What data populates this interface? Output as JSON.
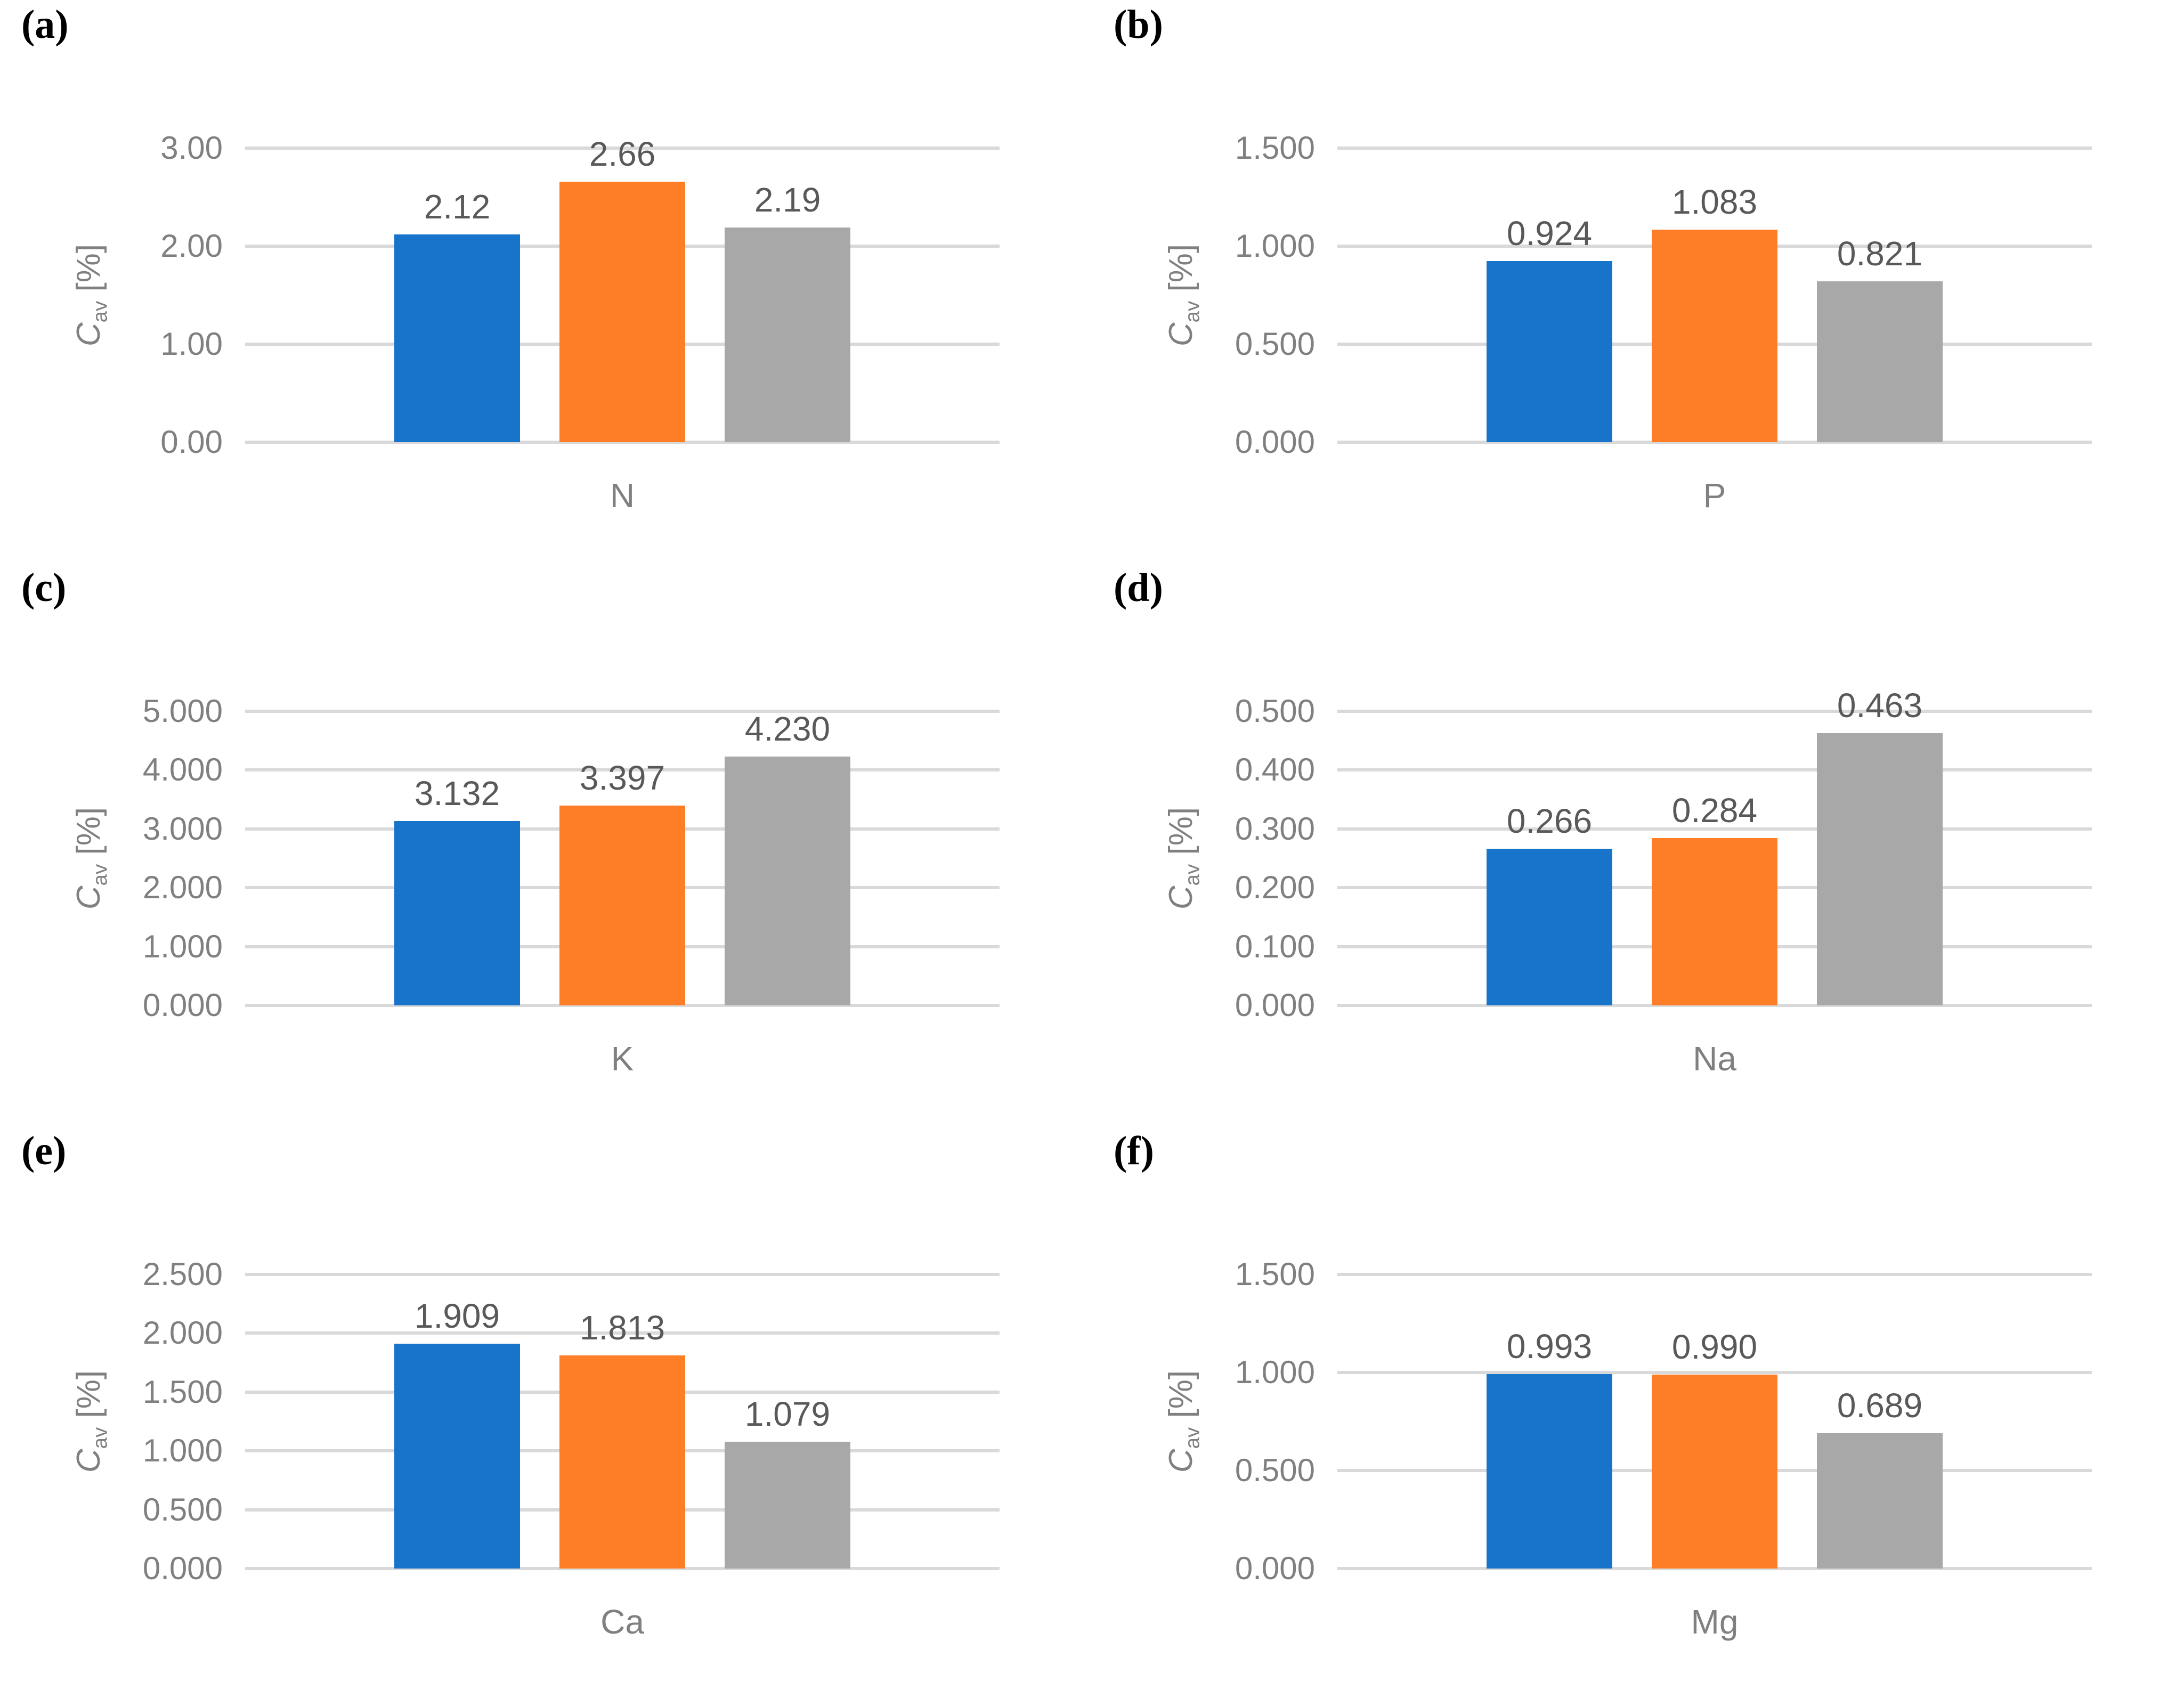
{
  "figure": {
    "y_axis_title": {
      "var": "C",
      "sub": "av",
      "unit": " [%]"
    },
    "colors": {
      "series": [
        "#1874CB",
        "#FD7E27",
        "#A8A8A8"
      ],
      "gridline": "#D9D9D9",
      "tick_label": "#808080",
      "category_label": "#808080",
      "axis_title": "#808080",
      "data_label": "#595959",
      "panel_letter": "#000000",
      "background": "#FFFFFF"
    }
  },
  "chart_data": [
    {
      "type": "bar",
      "panel_label": "(a)",
      "category": "N",
      "ylabel": "Cav [%]",
      "grid": true,
      "legend": "none",
      "values": [
        2.12,
        2.66,
        2.19
      ],
      "value_labels": [
        "2.12",
        "2.66",
        "2.19"
      ],
      "ylim": [
        0,
        3
      ],
      "ytick_labels": [
        "0.00",
        "1.00",
        "2.00",
        "3.00"
      ]
    },
    {
      "type": "bar",
      "panel_label": "(b)",
      "category": "P",
      "ylabel": "Cav [%]",
      "grid": true,
      "legend": "none",
      "values": [
        0.924,
        1.083,
        0.821
      ],
      "value_labels": [
        "0.924",
        "1.083",
        "0.821"
      ],
      "ylim": [
        0,
        1.5
      ],
      "ytick_labels": [
        "0.000",
        "0.500",
        "1.000",
        "1.500"
      ]
    },
    {
      "type": "bar",
      "panel_label": "(c)",
      "category": "K",
      "ylabel": "Cav [%]",
      "grid": true,
      "legend": "none",
      "values": [
        3.132,
        3.397,
        4.23
      ],
      "value_labels": [
        "3.132",
        "3.397",
        "4.230"
      ],
      "ylim": [
        0,
        5
      ],
      "ytick_labels": [
        "0.000",
        "1.000",
        "2.000",
        "3.000",
        "4.000",
        "5.000"
      ]
    },
    {
      "type": "bar",
      "panel_label": "(d)",
      "category": "Na",
      "ylabel": "Cav [%]",
      "grid": true,
      "legend": "none",
      "values": [
        0.266,
        0.284,
        0.463
      ],
      "value_labels": [
        "0.266",
        "0.284",
        "0.463"
      ],
      "ylim": [
        0,
        0.5
      ],
      "ytick_labels": [
        "0.000",
        "0.100",
        "0.200",
        "0.300",
        "0.400",
        "0.500"
      ]
    },
    {
      "type": "bar",
      "panel_label": "(e)",
      "category": "Ca",
      "ylabel": "Cav [%]",
      "grid": true,
      "legend": "none",
      "values": [
        1.909,
        1.813,
        1.079
      ],
      "value_labels": [
        "1.909",
        "1.813",
        "1.079"
      ],
      "ylim": [
        0,
        2.5
      ],
      "ytick_labels": [
        "0.000",
        "0.500",
        "1.000",
        "1.500",
        "2.000",
        "2.500"
      ]
    },
    {
      "type": "bar",
      "panel_label": "(f)",
      "category": "Mg",
      "ylabel": "Cav [%]",
      "grid": true,
      "legend": "none",
      "values": [
        0.993,
        0.99,
        0.689
      ],
      "value_labels": [
        "0.993",
        "0.990",
        "0.689"
      ],
      "ylim": [
        0,
        1.5
      ],
      "ytick_labels": [
        "0.000",
        "0.500",
        "1.000",
        "1.500"
      ]
    }
  ]
}
